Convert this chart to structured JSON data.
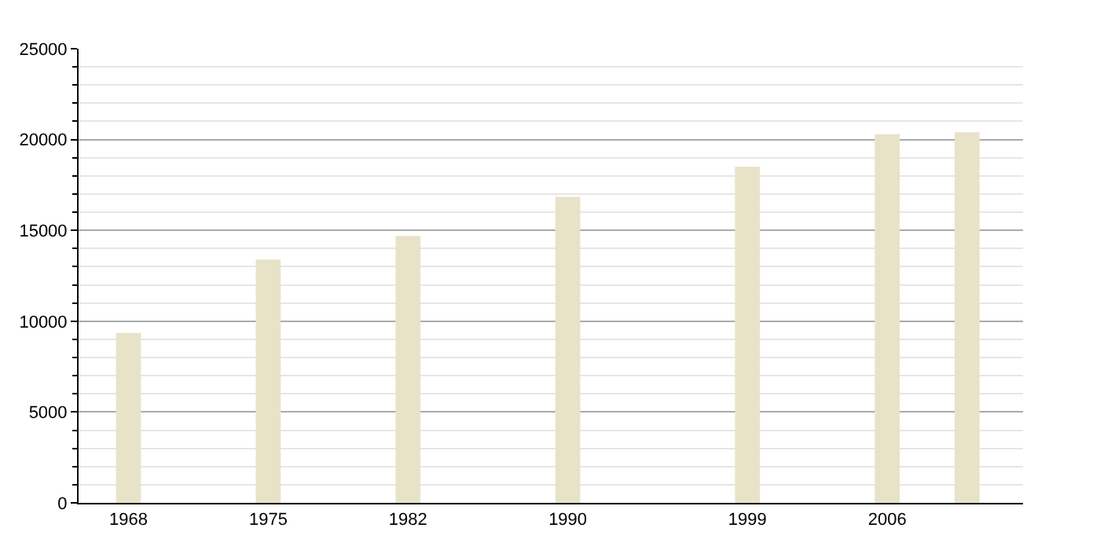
{
  "chart_data": {
    "type": "bar",
    "x": [
      1968,
      1975,
      1982,
      1990,
      1999,
      2006,
      2010
    ],
    "values": [
      9350,
      13400,
      14700,
      16850,
      18500,
      20300,
      20400
    ],
    "color": "#e8e2c8",
    "xlim": [
      1965.5,
      2012.8
    ],
    "xticks": [
      1968,
      1975,
      1982,
      1990,
      1999,
      2006
    ],
    "ylim": [
      0,
      25000
    ],
    "yticks": [
      0,
      5000,
      10000,
      15000,
      20000,
      25000
    ],
    "grid": "y"
  }
}
